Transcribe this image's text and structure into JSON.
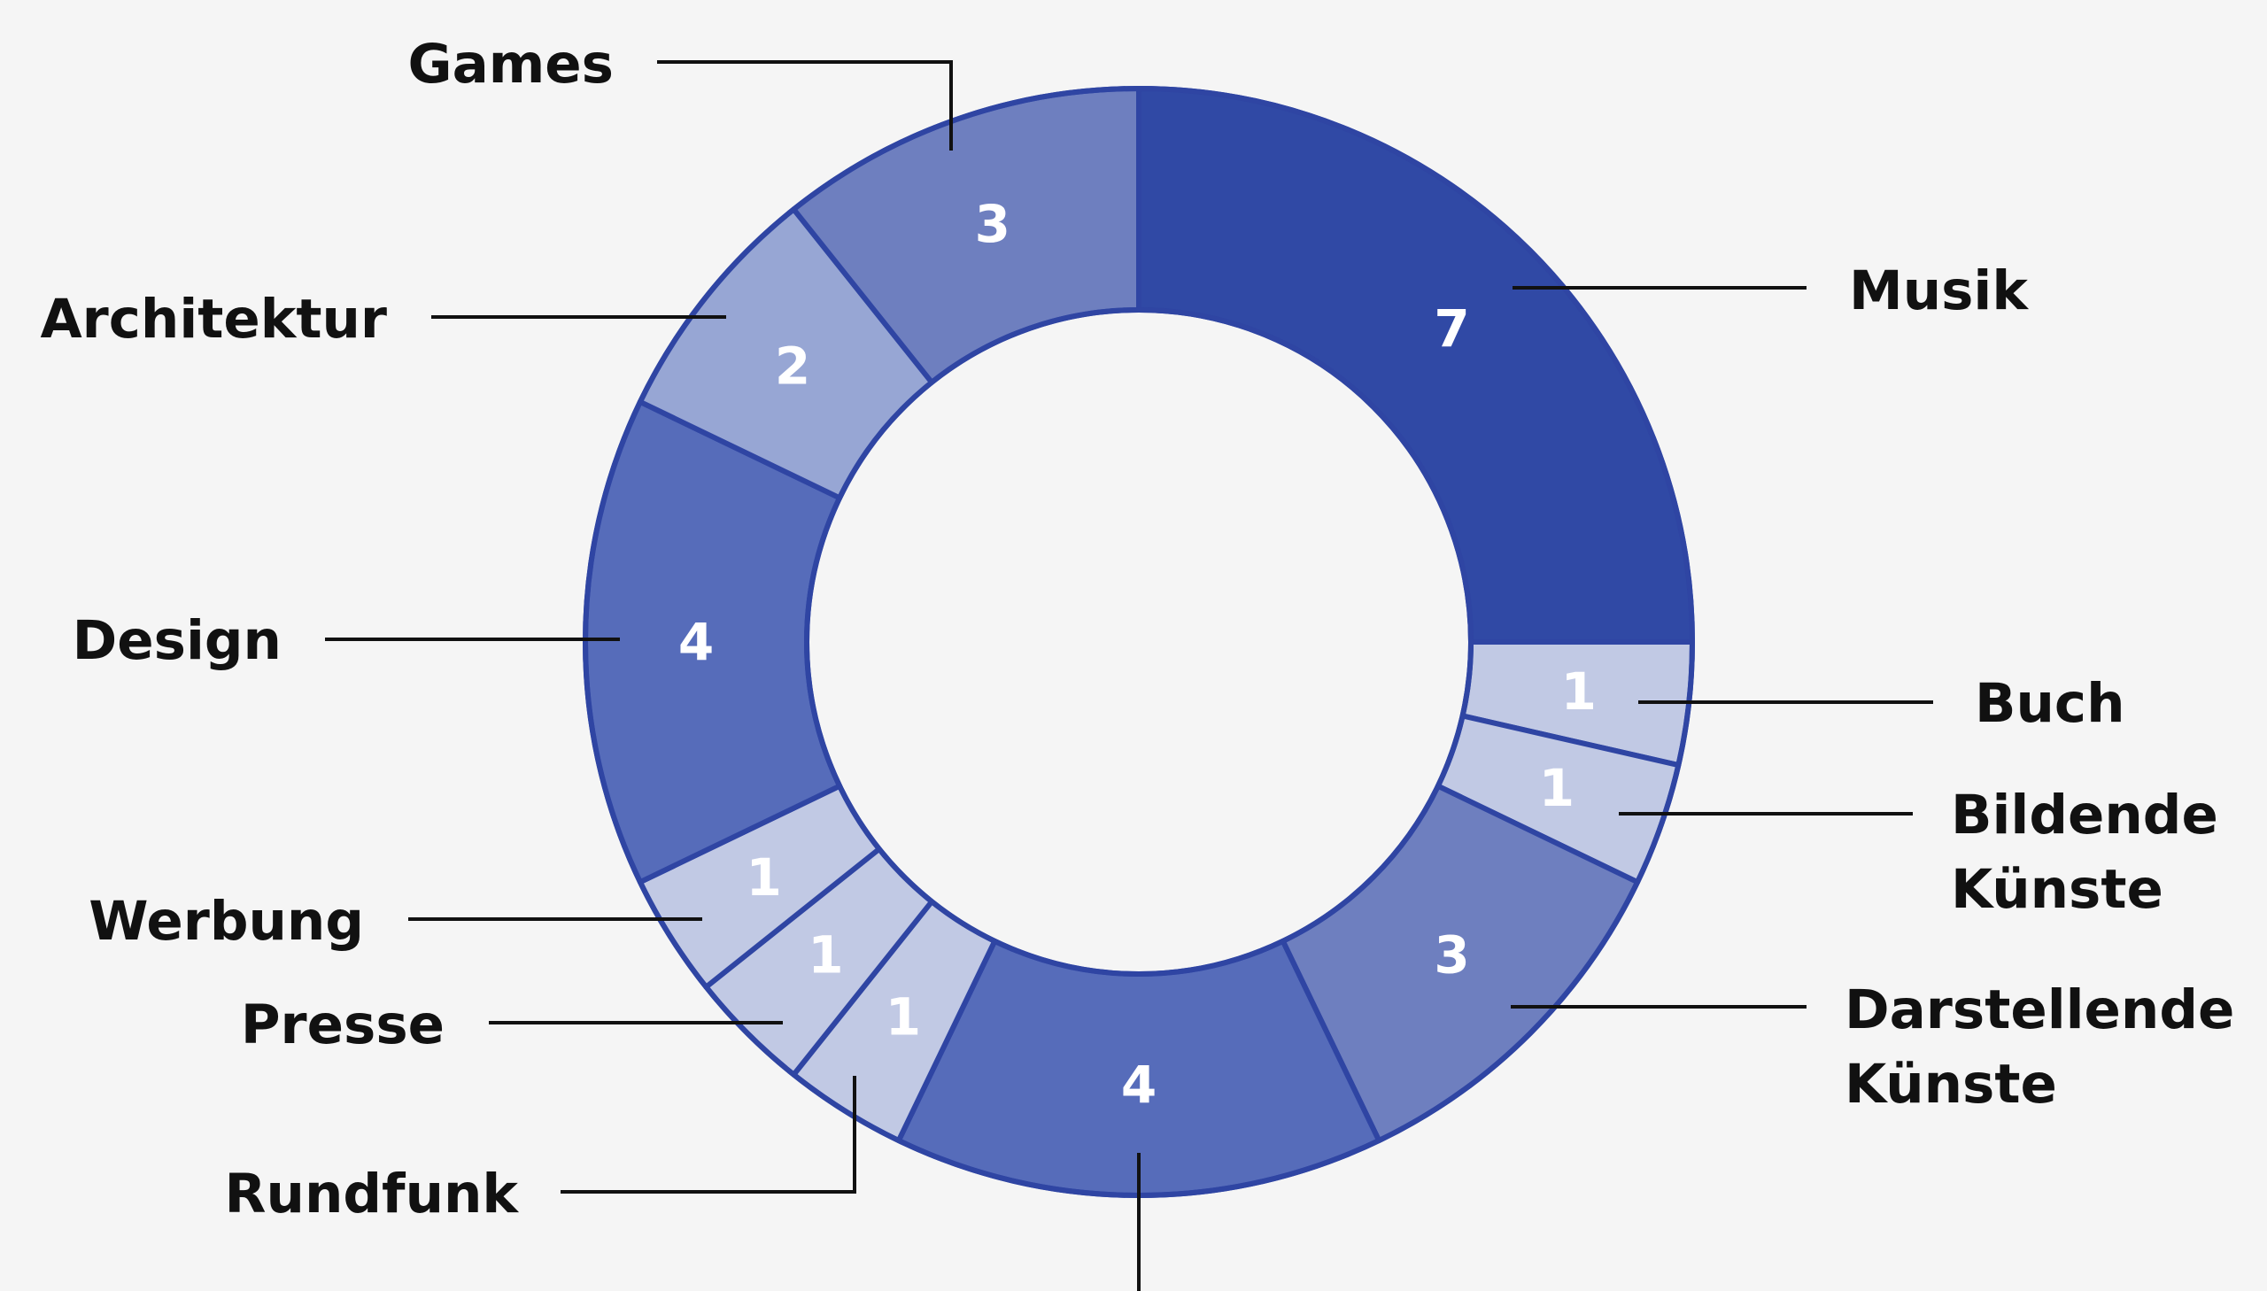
{
  "chart_data": {
    "type": "pie",
    "subtype": "donut",
    "categories": [
      "Musik",
      "Buch",
      "Bildende Künste",
      "Darstellende Künste",
      "",
      "Rundfunk",
      "Presse",
      "Werbung",
      "Design",
      "Architektur",
      "Games"
    ],
    "values": [
      7,
      1,
      1,
      3,
      4,
      1,
      1,
      1,
      4,
      2,
      3
    ],
    "value_labels": [
      "7",
      "1",
      "1",
      "3",
      "4",
      "1",
      "1",
      "1",
      "4",
      "2",
      "3"
    ],
    "label_lines": [
      [
        "Musik"
      ],
      [
        "Buch"
      ],
      [
        "Bildende",
        "Künste"
      ],
      [
        "Darstellende",
        "Künste"
      ],
      [],
      [
        "Rundfunk"
      ],
      [
        "Presse"
      ],
      [
        "Werbung"
      ],
      [
        "Design"
      ],
      [
        "Architektur"
      ],
      [
        "Games"
      ]
    ],
    "colors": [
      "#3049a5",
      "#c1c9e4",
      "#c1c9e4",
      "#6e7fbf",
      "#566cba",
      "#c1c9e4",
      "#c1c9e4",
      "#c1c9e4",
      "#566cba",
      "#97a6d4",
      "#6e7fbf"
    ],
    "outline_color": "#2f45a3",
    "background": "#f5f5f5",
    "start_position": "12 o'clock",
    "direction": "clockwise",
    "legend": "none; category labels with leader lines"
  }
}
